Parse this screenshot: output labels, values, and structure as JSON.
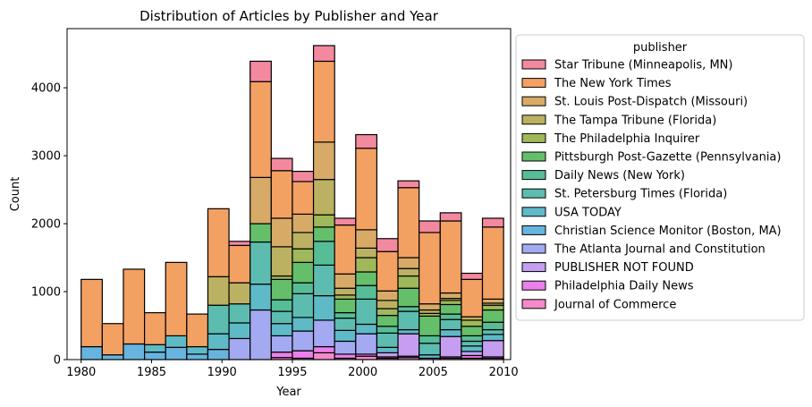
{
  "chart_data": {
    "type": "bar",
    "stacked": true,
    "title": "Distribution of Articles by Publisher and Year",
    "xlabel": "Year",
    "ylabel": "Count",
    "xlim": [
      1979,
      2010.5
    ],
    "ylim": [
      0,
      4870
    ],
    "xticks": [
      1980,
      1985,
      1990,
      1995,
      2000,
      2005,
      2010
    ],
    "yticks": [
      0,
      1000,
      2000,
      3000,
      4000
    ],
    "legend_title": "publisher",
    "legend_position": "outside-right",
    "bins": [
      [
        1980,
        1981.5
      ],
      [
        1981.5,
        1983
      ],
      [
        1983,
        1984.5
      ],
      [
        1984.5,
        1986
      ],
      [
        1986,
        1987.5
      ],
      [
        1987.5,
        1989
      ],
      [
        1989,
        1990.5
      ],
      [
        1990.5,
        1992
      ],
      [
        1992,
        1993.5
      ],
      [
        1993.5,
        1995
      ],
      [
        1995,
        1996.5
      ],
      [
        1996.5,
        1998
      ],
      [
        1998,
        1999.5
      ],
      [
        1999.5,
        2001
      ],
      [
        2001,
        2002.5
      ],
      [
        2002.5,
        2004
      ],
      [
        2004,
        2005.5
      ],
      [
        2005.5,
        2007
      ],
      [
        2007,
        2008.5
      ],
      [
        2008.5,
        2010
      ]
    ],
    "series": [
      {
        "name": "Star Tribune (Minneapolis, MN)",
        "color": "#f3899f",
        "values": [
          0,
          0,
          0,
          0,
          0,
          0,
          0,
          60,
          300,
          180,
          150,
          230,
          100,
          200,
          190,
          100,
          170,
          120,
          90,
          130
        ]
      },
      {
        "name": "The New York Times",
        "color": "#f3a063",
        "values": [
          990,
          460,
          1100,
          470,
          1080,
          480,
          1000,
          550,
          1410,
          700,
          480,
          1190,
          720,
          1200,
          580,
          1030,
          1050,
          1060,
          550,
          1060
        ]
      },
      {
        "name": "St. Louis Post-Dispatch (Missouri)",
        "color": "#d7ab67",
        "values": [
          0,
          0,
          0,
          0,
          0,
          0,
          0,
          0,
          680,
          420,
          270,
          550,
          210,
          270,
          140,
          160,
          90,
          80,
          0,
          60
        ]
      },
      {
        "name": "The Tampa Tribune (Florida)",
        "color": "#bcb162",
        "values": [
          0,
          0,
          0,
          0,
          0,
          0,
          420,
          310,
          0,
          430,
          240,
          520,
          100,
          140,
          120,
          110,
          50,
          30,
          50,
          30
        ]
      },
      {
        "name": "The Philadelphia Inquirer",
        "color": "#9eb85a",
        "values": [
          0,
          0,
          0,
          0,
          0,
          0,
          0,
          0,
          0,
          50,
          200,
          180,
          60,
          210,
          100,
          180,
          40,
          60,
          90,
          70
        ]
      },
      {
        "name": "Pittsburgh Post-Gazette (Pennsylvania)",
        "color": "#65bf6a",
        "values": [
          0,
          0,
          0,
          0,
          0,
          0,
          0,
          0,
          270,
          300,
          300,
          210,
          200,
          200,
          160,
          270,
          290,
          140,
          140,
          180
        ]
      },
      {
        "name": "Daily News (New York)",
        "color": "#57bd97",
        "values": [
          0,
          0,
          0,
          0,
          0,
          0,
          0,
          0,
          0,
          170,
          160,
          350,
          80,
          200,
          100,
          70,
          110,
          80,
          80,
          110
        ]
      },
      {
        "name": "St. Petersburg Times (Florida)",
        "color": "#5dbcb0",
        "values": [
          0,
          0,
          0,
          0,
          0,
          0,
          420,
          280,
          620,
          180,
          350,
          450,
          180,
          370,
          210,
          270,
          170,
          150,
          70,
          70
        ]
      },
      {
        "name": "USA TODAY",
        "color": "#5ebac7",
        "values": [
          0,
          0,
          0,
          110,
          170,
          110,
          230,
          230,
          380,
          180,
          200,
          360,
          160,
          140,
          80,
          60,
          50,
          100,
          80,
          90
        ]
      },
      {
        "name": "Christian Science Monitor (Boston, MA)",
        "color": "#67b4df",
        "values": [
          190,
          70,
          230,
          110,
          180,
          80,
          150,
          0,
          0,
          0,
          0,
          0,
          0,
          0,
          0,
          0,
          0,
          0,
          0,
          0
        ]
      },
      {
        "name": "The Atlanta Journal and Constitution",
        "color": "#a3aaf2",
        "values": [
          0,
          0,
          0,
          0,
          0,
          0,
          0,
          310,
          730,
          240,
          290,
          390,
          190,
          300,
          0,
          0,
          0,
          0,
          0,
          0
        ]
      },
      {
        "name": "PUBLISHER NOT FOUND",
        "color": "#c59ef1",
        "values": [
          0,
          0,
          0,
          0,
          0,
          0,
          0,
          0,
          0,
          0,
          0,
          0,
          0,
          0,
          60,
          330,
          0,
          300,
          60,
          240
        ]
      },
      {
        "name": "Philadelphia Daily News",
        "color": "#ec80ea",
        "values": [
          0,
          0,
          0,
          0,
          0,
          0,
          0,
          0,
          0,
          80,
          110,
          90,
          60,
          30,
          20,
          20,
          0,
          20,
          40,
          20
        ]
      },
      {
        "name": "Journal of Commerce",
        "color": "#f38bca",
        "values": [
          0,
          0,
          0,
          0,
          0,
          0,
          0,
          0,
          0,
          30,
          20,
          100,
          20,
          50,
          20,
          30,
          20,
          20,
          20,
          20
        ]
      }
    ]
  }
}
